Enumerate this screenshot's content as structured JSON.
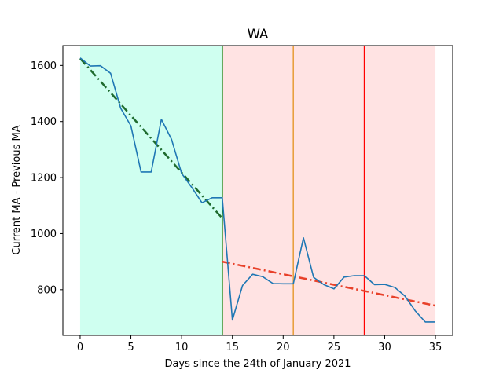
{
  "chart_data": {
    "type": "line",
    "title": "WA",
    "xlabel": "Days since the 24th of January 2021",
    "ylabel": "Current MA - Previous MA",
    "xlim": [
      -1.7,
      36.7
    ],
    "ylim": [
      637,
      1671
    ],
    "x_ticks": [
      0,
      5,
      10,
      15,
      20,
      25,
      30,
      35
    ],
    "y_ticks": [
      800,
      1000,
      1200,
      1400,
      1600
    ],
    "grid": false,
    "legend": "none",
    "shaded_regions": [
      {
        "x_start": 0,
        "x_end": 14,
        "color": "#cffff0"
      },
      {
        "x_start": 14,
        "x_end": 35,
        "color": "#ffe3e3"
      }
    ],
    "vertical_lines": [
      {
        "x": 14,
        "color": "#008000"
      },
      {
        "x": 21,
        "color": "#e8a040"
      },
      {
        "x": 28,
        "color": "#ff0000"
      }
    ],
    "trend_lines": [
      {
        "x": [
          0,
          14
        ],
        "y": [
          1625,
          1055
        ],
        "color": "#1e6b2e",
        "style": "dashdot"
      },
      {
        "x": [
          14,
          35
        ],
        "y": [
          900,
          743
        ],
        "color": "#e8412a",
        "style": "dashdot"
      }
    ],
    "series": [
      {
        "color": "#1f77b4",
        "x": [
          0,
          1,
          2,
          3,
          4,
          5,
          6,
          7,
          8,
          9,
          10,
          11,
          12,
          13,
          14,
          15,
          16,
          17,
          18,
          19,
          20,
          21,
          22,
          23,
          24,
          25,
          26,
          27,
          28,
          29,
          30,
          31,
          32,
          33,
          34,
          35
        ],
        "values": [
          1627,
          1598,
          1599,
          1572,
          1447,
          1385,
          1220,
          1220,
          1408,
          1337,
          1215,
          1165,
          1110,
          1128,
          1128,
          692,
          815,
          855,
          846,
          822,
          821,
          821,
          985,
          844,
          818,
          803,
          845,
          850,
          850,
          818,
          819,
          808,
          777,
          725,
          685,
          685
        ]
      }
    ]
  }
}
